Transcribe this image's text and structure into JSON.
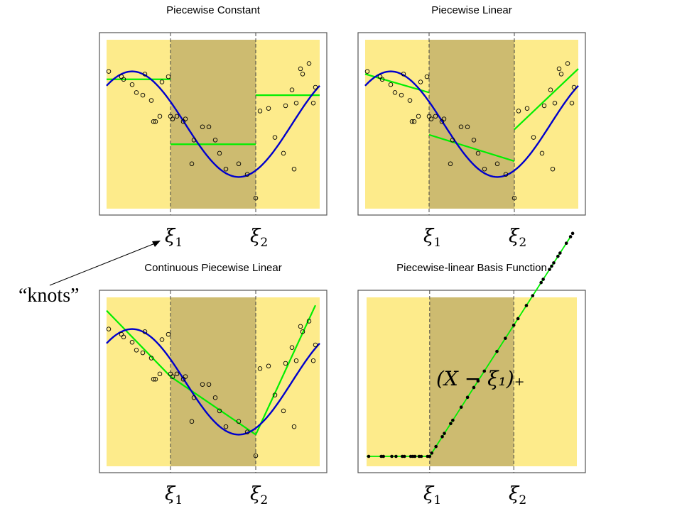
{
  "colors": {
    "outer_region": "#fdeb8b",
    "middle_region": "#cdbb70",
    "true_curve": "#0000cc",
    "fit": "#00ee00",
    "frame": "#555555",
    "knot_line": "#444444"
  },
  "knots": {
    "xi1_symbol": "ξ",
    "xi1_sub": "1",
    "xi2_symbol": "ξ",
    "xi2_sub": "2"
  },
  "callout": {
    "label": "“knots”"
  },
  "basis_formula": "(X − ξ₁)₊",
  "chart_data": [
    {
      "type": "scatter",
      "title": "Piecewise Constant",
      "xlim": [
        0,
        1
      ],
      "ylim": [
        -1.6,
        1.6
      ],
      "knots": [
        0.3,
        0.7
      ],
      "fit_kind": "constant"
    },
    {
      "type": "scatter",
      "title": "Piecewise Linear",
      "xlim": [
        0,
        1
      ],
      "ylim": [
        -1.6,
        1.6
      ],
      "knots": [
        0.3,
        0.7
      ],
      "fit_kind": "linear"
    },
    {
      "type": "scatter",
      "title": "Continuous Piecewise Linear",
      "xlim": [
        0,
        1
      ],
      "ylim": [
        -1.6,
        1.6
      ],
      "knots": [
        0.3,
        0.7
      ],
      "fit_kind": "continuous"
    },
    {
      "type": "scatter",
      "title": "Piecewise-linear Basis Function",
      "xlim": [
        0,
        1
      ],
      "ylim": [
        -0.1,
        1.6
      ],
      "knots": [
        0.3,
        0.7
      ],
      "fit_kind": "basis"
    }
  ],
  "points": {
    "x": [
      0.01,
      0.07,
      0.08,
      0.12,
      0.14,
      0.17,
      0.18,
      0.21,
      0.22,
      0.23,
      0.25,
      0.26,
      0.29,
      0.3,
      0.31,
      0.33,
      0.36,
      0.37,
      0.4,
      0.41,
      0.45,
      0.48,
      0.51,
      0.53,
      0.56,
      0.62,
      0.66,
      0.7,
      0.72,
      0.76,
      0.79,
      0.83,
      0.84,
      0.87,
      0.88,
      0.89,
      0.91,
      0.92,
      0.95,
      0.97,
      0.98
    ],
    "y": [
      1.0,
      0.9,
      0.85,
      0.75,
      0.6,
      0.55,
      0.95,
      0.45,
      0.05,
      0.05,
      0.15,
      0.8,
      0.9,
      0.15,
      0.1,
      0.15,
      0.05,
      0.1,
      -0.75,
      -0.3,
      -0.05,
      -0.05,
      -0.3,
      -0.55,
      -0.85,
      -0.75,
      -0.95,
      -1.4,
      0.25,
      0.3,
      -0.25,
      -0.55,
      0.35,
      0.65,
      -0.85,
      0.4,
      1.05,
      0.95,
      1.15,
      0.4,
      0.7
    ]
  }
}
